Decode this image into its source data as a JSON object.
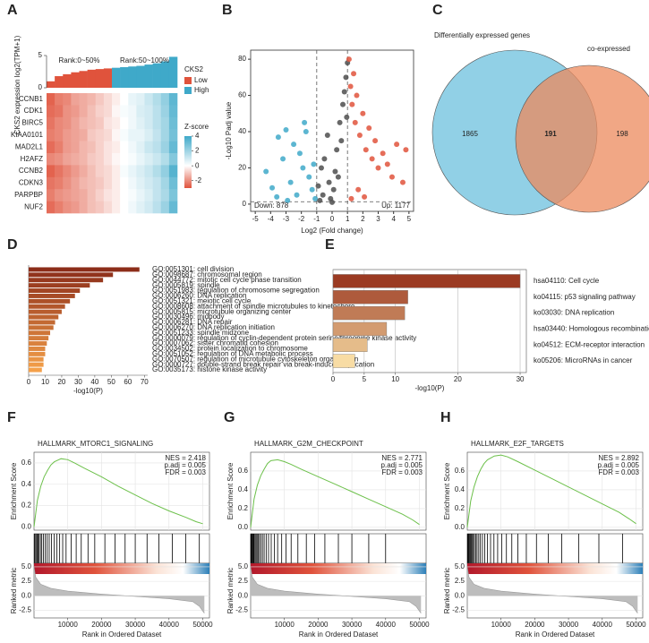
{
  "chart_data": [
    {
      "type": "heatmap",
      "label": "A",
      "ylabel": "CKS2 expression log2(TPM+1)",
      "rank_labels": [
        "Rank:0~50%",
        "Rank:50~100%"
      ],
      "legend_title": "CKS2",
      "groups": [
        {
          "name": "Low",
          "color": "#e0533c"
        },
        {
          "name": "High",
          "color": "#3fa9c9"
        }
      ],
      "expression": [
        1.0,
        1.8,
        2.1,
        2.4,
        2.6,
        2.8,
        2.9,
        3.0,
        3.1,
        3.2,
        3.3,
        3.4,
        3.6,
        3.8,
        4.1,
        4.8
      ],
      "ylim": [
        0,
        5
      ],
      "yticks": [
        0,
        5
      ],
      "genes": [
        "CCNB1",
        "CDK1",
        "BIRC5",
        "KIAA0101",
        "MAD2L1",
        "H2AFZ",
        "CCNB2",
        "CDKN3",
        "PARPBP",
        "NUF2"
      ],
      "z": [
        [
          -1.7,
          -1.4,
          -1.3,
          -1.0,
          -0.9,
          -0.8,
          -0.6,
          -0.4,
          -0.2,
          0.0,
          0.3,
          0.4,
          0.7,
          1.0,
          1.4,
          2.1
        ],
        [
          -1.6,
          -1.5,
          -1.2,
          -1.1,
          -0.9,
          -0.7,
          -0.5,
          -0.4,
          -0.1,
          0.1,
          0.2,
          0.5,
          0.6,
          0.9,
          1.3,
          2.0
        ],
        [
          -1.5,
          -1.3,
          -1.2,
          -1.0,
          -0.8,
          -0.7,
          -0.6,
          -0.3,
          -0.2,
          0.0,
          0.2,
          0.4,
          0.6,
          0.9,
          1.2,
          1.9
        ],
        [
          -1.4,
          -1.3,
          -1.1,
          -1.0,
          -0.9,
          -0.6,
          -0.5,
          -0.4,
          -0.1,
          0.1,
          0.3,
          0.3,
          0.5,
          0.8,
          1.2,
          1.8
        ],
        [
          -1.6,
          -1.4,
          -1.1,
          -1.0,
          -0.8,
          -0.7,
          -0.5,
          -0.3,
          -0.2,
          0.0,
          0.2,
          0.4,
          0.7,
          0.9,
          1.3,
          2.0
        ],
        [
          -1.3,
          -1.2,
          -1.0,
          -0.9,
          -0.8,
          -0.6,
          -0.5,
          -0.3,
          -0.1,
          0.0,
          0.1,
          0.3,
          0.5,
          0.7,
          1.0,
          1.6
        ],
        [
          -1.7,
          -1.5,
          -1.3,
          -1.1,
          -0.9,
          -0.7,
          -0.5,
          -0.4,
          -0.2,
          0.1,
          0.3,
          0.5,
          0.7,
          1.0,
          1.4,
          2.2
        ],
        [
          -1.5,
          -1.4,
          -1.2,
          -1.0,
          -0.8,
          -0.7,
          -0.6,
          -0.4,
          -0.2,
          0.0,
          0.2,
          0.4,
          0.6,
          0.8,
          1.2,
          1.9
        ],
        [
          -1.4,
          -1.2,
          -1.1,
          -1.0,
          -0.9,
          -0.7,
          -0.5,
          -0.3,
          -0.2,
          0.0,
          0.1,
          0.3,
          0.5,
          0.8,
          1.1,
          1.7
        ],
        [
          -1.6,
          -1.4,
          -1.2,
          -1.1,
          -0.9,
          -0.7,
          -0.6,
          -0.4,
          -0.2,
          0.0,
          0.2,
          0.4,
          0.6,
          0.9,
          1.3,
          2.0
        ]
      ],
      "colorbar_title": "Z-score",
      "zlim": [
        -3,
        4
      ],
      "zticks": [
        4,
        2,
        0,
        -2
      ]
    },
    {
      "type": "scatter",
      "label": "B",
      "xlabel": "Log2 (Fold change)",
      "ylabel": "-Log10 Padj value",
      "xlim": [
        -5.3,
        5.3
      ],
      "xticks": [
        -5,
        -4,
        -3,
        -2,
        -1,
        0,
        1,
        2,
        3,
        4,
        5
      ],
      "ylim": [
        -4,
        85
      ],
      "yticks": [
        0,
        20,
        40,
        60,
        80
      ],
      "thresholds": {
        "x": [
          -1,
          1
        ],
        "y": 1.3
      },
      "series": [
        {
          "label": "Down: 878",
          "color": "#3fa9c9",
          "x": [
            -4.3,
            -3.9,
            -3.5,
            -3.2,
            -3.0,
            -2.7,
            -2.5,
            -2.3,
            -2.1,
            -1.9,
            -1.7,
            -1.5,
            -1.3,
            -1.2,
            -1.1,
            -2.9,
            -1.8,
            -3.6
          ],
          "values": [
            18,
            9,
            37,
            25,
            41,
            12,
            33,
            5,
            28,
            20,
            40,
            15,
            8,
            22,
            3,
            2,
            45,
            4
          ]
        },
        {
          "color": "#4d4d4d",
          "x": [
            -0.9,
            -0.7,
            -0.5,
            -0.3,
            -0.1,
            0.1,
            0.3,
            0.5,
            0.7,
            0.9,
            -0.6,
            0.0,
            0.4,
            0.8,
            -0.2,
            0.6,
            0.2,
            -0.8,
            0.95,
            1.0
          ],
          "values": [
            10,
            20,
            25,
            38,
            3,
            8,
            30,
            45,
            55,
            70,
            5,
            1,
            15,
            62,
            12,
            35,
            18,
            2,
            48,
            78
          ]
        },
        {
          "label": "Up: 1177",
          "color": "#e0533c",
          "x": [
            1.1,
            1.2,
            1.3,
            1.4,
            1.5,
            1.6,
            1.8,
            2.0,
            2.2,
            2.4,
            2.6,
            2.8,
            3.0,
            3.3,
            3.6,
            3.9,
            4.2,
            4.6,
            4.8,
            1.7,
            2.1,
            1.25
          ],
          "values": [
            80,
            65,
            55,
            72,
            45,
            60,
            38,
            50,
            30,
            42,
            25,
            35,
            20,
            28,
            22,
            15,
            33,
            12,
            30,
            8,
            4,
            3
          ]
        }
      ]
    },
    {
      "type": "venn",
      "label": "C",
      "sets": [
        {
          "name": "Differentially expressed genes",
          "color": "#6cc0de"
        },
        {
          "name": "co-expressed",
          "color": "#ec8a5c"
        }
      ],
      "values": [
        1865,
        191,
        198
      ]
    },
    {
      "type": "bar",
      "label": "D",
      "xlabel": "-log10(P)",
      "xlim": [
        0,
        72
      ],
      "xticks": [
        0,
        10,
        20,
        30,
        40,
        50,
        60,
        70
      ],
      "color_gradient": [
        "#8c2d19",
        "#f4a04a"
      ],
      "grid": false,
      "categories": [
        "GO:0051301: cell division",
        "GO:0098687: chromosomal region",
        "GO:0044772: mitotic cell cycle phase transition",
        "GO:0005819: spindle",
        "GO:0051983: regulation of chromosome segregation",
        "GO:0006260: DNA replication",
        "GO:0051321: meiotic cell cycle",
        "GO:0008608: attachment of spindle microtubules to kinetochore",
        "GO:0005815: microtubule organizing center",
        "GO:0030496: midbody",
        "GO:0006281: DNA repair",
        "GO:0006270: DNA replication initiation",
        "GO:0051233: spindle midzone",
        "GO:0000079: regulation of cyclin-dependent protein serine/threonine kinase activity",
        "GO:0007062: sister chromatid cohesion",
        "GO:0034502: protein localization to chromosome",
        "GO:0051052: regulation of DNA metabolic process",
        "GO:0070507: regulation of microtubule cytoskeleton organization",
        "GO:0000727: double-strand break repair via break-induced replication",
        "GO:0035173: histone kinase activity"
      ],
      "values": [
        67,
        51,
        45,
        37,
        31,
        28,
        25,
        22,
        20,
        18,
        16,
        15,
        13,
        12,
        11,
        10,
        10,
        9,
        9,
        8
      ]
    },
    {
      "type": "bar",
      "label": "E",
      "xlabel": "-log10(P)",
      "xlim": [
        0,
        31
      ],
      "xticks": [
        0,
        5,
        10,
        20,
        30
      ],
      "color_gradient": [
        "#9b3a22",
        "#f8dca4"
      ],
      "grid": true,
      "categories": [
        "hsa04110: Cell cycle",
        "ko04115: p53 signaling pathway",
        "ko03030: DNA replication",
        "hsa03440: Homologous recombination",
        "ko04512: ECM-receptor interaction",
        "ko05206: MicroRNAs in cancer"
      ],
      "values": [
        30,
        12,
        11.5,
        8.6,
        5.5,
        3.5
      ]
    },
    {
      "type": "gsea",
      "label": "F",
      "title": "HALLMARK_MTORC1_SIGNALING",
      "stats": [
        "NES = 2.418",
        "p.adj = 0.005",
        "FDR = 0.003"
      ],
      "ylabel": "Enrichment Score",
      "metric_ylabel": "Ranked metric",
      "xlabel": "Rank in Ordered Dataset",
      "color": "#6cc04a",
      "xlim": [
        0,
        52000
      ],
      "xticks": [
        10000,
        20000,
        30000,
        40000,
        50000
      ],
      "ylim": [
        -0.03,
        0.7
      ],
      "yticks": [
        {
          "value": 0,
          "label": "0.0"
        },
        0.2,
        0.4,
        0.6
      ],
      "es_x": [
        0,
        1000,
        2000,
        3000,
        4000,
        5000,
        6000,
        8000,
        10000,
        12000,
        15000,
        20000,
        25000,
        30000,
        35000,
        40000,
        45000,
        48000,
        50000
      ],
      "es_values": [
        0,
        0.25,
        0.38,
        0.47,
        0.53,
        0.58,
        0.61,
        0.64,
        0.63,
        0.6,
        0.55,
        0.47,
        0.38,
        0.3,
        0.22,
        0.15,
        0.09,
        0.05,
        0.03
      ],
      "hits": [
        100,
        300,
        600,
        900,
        1200,
        1500,
        1900,
        2300,
        2800,
        3300,
        3900,
        4500,
        5200,
        6000,
        6800,
        7600,
        8500,
        9500,
        11000,
        12500,
        14000,
        16000,
        18000,
        21000,
        24000,
        27000,
        30000,
        33500,
        37000,
        41000,
        45000,
        49000
      ],
      "metric_ylim": [
        -3.8,
        5.6
      ],
      "metric_yticks": [
        {
          "value": 5,
          "label": "5.0"
        },
        2.5,
        {
          "value": 0,
          "label": "0.0"
        },
        -2.5
      ],
      "metric_x": [
        0,
        500,
        2000,
        5000,
        10000,
        20000,
        30000,
        40000,
        47000,
        49000,
        50500
      ],
      "metric_values": [
        5,
        3.2,
        2.0,
        1.3,
        0.8,
        0.3,
        -0.1,
        -0.5,
        -1.0,
        -1.8,
        -3.0
      ]
    },
    {
      "type": "gsea",
      "label": "G",
      "title": "HALLMARK_G2M_CHECKPOINT",
      "stats": [
        "NES = 2.771",
        "p.adj = 0.005",
        "FDR = 0.003"
      ],
      "ylabel": "Enrichment Score",
      "metric_ylabel": "Ranked metric",
      "xlabel": "Rank in Ordered Dataset",
      "color": "#6cc04a",
      "xlim": [
        0,
        52000
      ],
      "xticks": [
        10000,
        20000,
        30000,
        40000,
        50000
      ],
      "ylim": [
        -0.03,
        0.8
      ],
      "yticks": [
        {
          "value": 0,
          "label": "0.0"
        },
        0.2,
        0.4,
        0.6
      ],
      "es_x": [
        0,
        1000,
        2000,
        3000,
        4000,
        5000,
        6000,
        8000,
        10000,
        12000,
        15000,
        20000,
        25000,
        30000,
        35000,
        40000,
        45000,
        48000,
        50000
      ],
      "es_values": [
        0,
        0.3,
        0.45,
        0.55,
        0.62,
        0.68,
        0.71,
        0.72,
        0.7,
        0.67,
        0.62,
        0.54,
        0.46,
        0.38,
        0.3,
        0.22,
        0.14,
        0.08,
        0.03
      ],
      "hits": [
        50,
        200,
        400,
        600,
        800,
        1000,
        1300,
        1600,
        1900,
        2200,
        2600,
        3000,
        3500,
        4000,
        4600,
        5300,
        6100,
        7000,
        8000,
        9200,
        10500,
        12000,
        14000,
        16500,
        19000,
        22000,
        26000,
        30000,
        35000,
        40000
      ],
      "metric_ylim": [
        -3.8,
        5.6
      ],
      "metric_yticks": [
        {
          "value": 5,
          "label": "5.0"
        },
        2.5,
        {
          "value": 0,
          "label": "0.0"
        },
        -2.5
      ],
      "metric_x": [
        0,
        500,
        2000,
        5000,
        10000,
        20000,
        30000,
        40000,
        47000,
        49000,
        50500
      ],
      "metric_values": [
        5,
        3.2,
        2.0,
        1.3,
        0.8,
        0.3,
        -0.1,
        -0.5,
        -1.0,
        -1.8,
        -3.0
      ]
    },
    {
      "type": "gsea",
      "label": "H",
      "title": "HALLMARK_E2F_TARGETS",
      "stats": [
        "NES = 2.892",
        "p.adj = 0.005",
        "FDR = 0.003"
      ],
      "ylabel": "Enrichment Score",
      "metric_ylabel": "Ranked metric",
      "xlabel": "Rank in Ordered Dataset",
      "color": "#6cc04a",
      "xlim": [
        0,
        52000
      ],
      "xticks": [
        10000,
        20000,
        30000,
        40000,
        50000
      ],
      "ylim": [
        -0.03,
        0.8
      ],
      "yticks": [
        {
          "value": 0,
          "label": "0.0"
        },
        0.2,
        0.4,
        0.6
      ],
      "es_x": [
        0,
        1000,
        2000,
        3000,
        4000,
        5000,
        6000,
        8000,
        10000,
        12000,
        15000,
        20000,
        25000,
        30000,
        35000,
        40000,
        45000,
        48000,
        50000
      ],
      "es_values": [
        0,
        0.28,
        0.43,
        0.54,
        0.62,
        0.68,
        0.72,
        0.76,
        0.77,
        0.75,
        0.7,
        0.61,
        0.52,
        0.43,
        0.34,
        0.25,
        0.16,
        0.09,
        0.04
      ],
      "hits": [
        80,
        250,
        450,
        700,
        950,
        1200,
        1500,
        1800,
        2100,
        2500,
        2900,
        3400,
        3900,
        4500,
        5200,
        6000,
        6900,
        7900,
        9000,
        10200,
        11600,
        13200,
        15000,
        17500,
        20500,
        24000,
        28000,
        33000,
        39000,
        46000
      ],
      "metric_ylim": [
        -3.8,
        5.6
      ],
      "metric_yticks": [
        {
          "value": 5,
          "label": "5.0"
        },
        2.5,
        {
          "value": 0,
          "label": "0.0"
        },
        -2.5
      ],
      "metric_x": [
        0,
        500,
        2000,
        5000,
        10000,
        20000,
        30000,
        40000,
        47000,
        49000,
        50500
      ],
      "metric_values": [
        5,
        3.2,
        2.0,
        1.3,
        0.8,
        0.3,
        -0.1,
        -0.5,
        -1.0,
        -1.8,
        -3.0
      ]
    }
  ]
}
